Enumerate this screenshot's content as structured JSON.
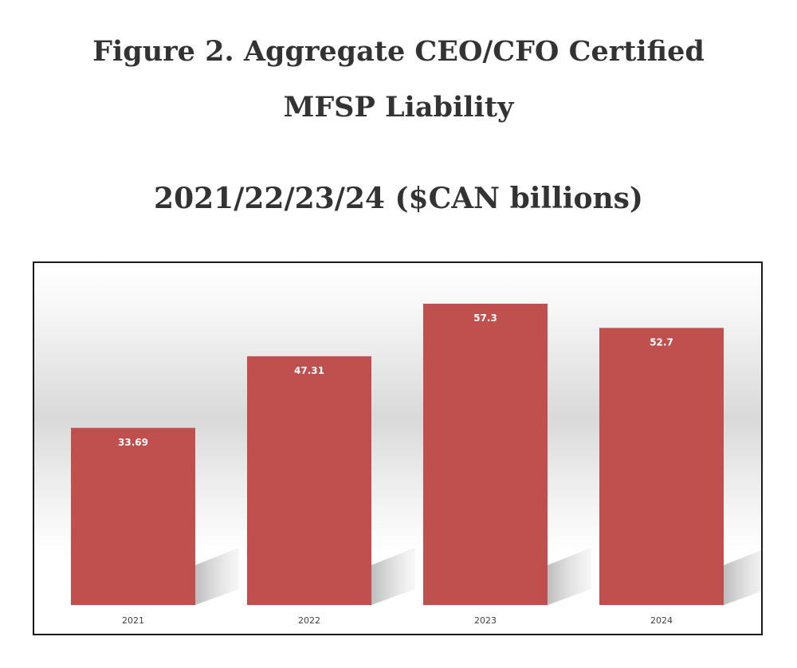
{
  "title_lines": [
    "Figure 2. Aggregate CEO/CFO Certified",
    "MFSP Liability",
    "2021/22/23/24 ($CAN billions)"
  ],
  "colors": {
    "bar": "#c0504d",
    "title": "#333333",
    "frame": "#1a1a1a"
  },
  "chart_data": {
    "type": "bar",
    "title": "Figure 2. Aggregate CEO/CFO Certified MFSP Liability 2021/22/23/24 ($CAN billions)",
    "categories": [
      "2021",
      "2022",
      "2023",
      "2024"
    ],
    "values": [
      33.69,
      47.31,
      57.3,
      52.7
    ],
    "value_labels": [
      "33.69",
      "47.31",
      "57.3",
      "52.7"
    ],
    "xlabel": "",
    "ylabel": "",
    "ylim": [
      0,
      62
    ],
    "grid": false,
    "legend": "none",
    "data_labels": "inside-top"
  }
}
